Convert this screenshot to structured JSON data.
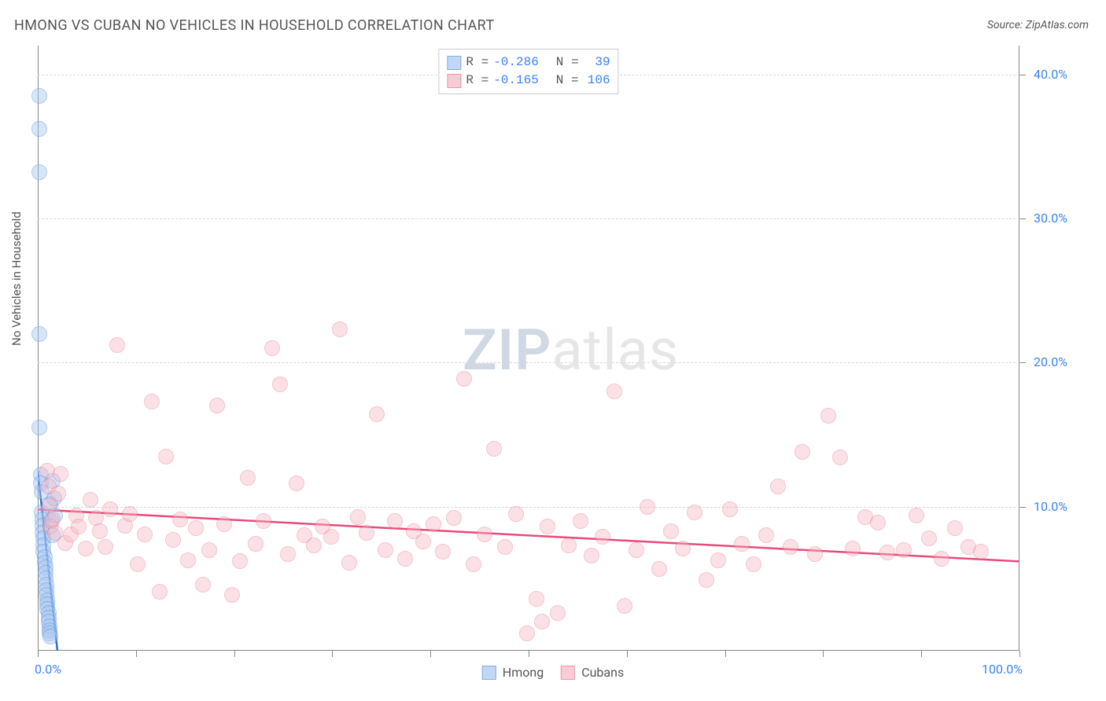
{
  "title": "HMONG VS CUBAN NO VEHICLES IN HOUSEHOLD CORRELATION CHART",
  "source": "Source: ZipAtlas.com",
  "y_axis_label": "No Vehicles in Household",
  "watermark": {
    "zip": "ZIP",
    "atlas": "atlas"
  },
  "chart": {
    "type": "scatter",
    "background_color": "#ffffff",
    "grid_color": "#d8d8d8",
    "axis_color": "#888888",
    "label_color": "#555555",
    "tick_label_color": "#3b82f6",
    "tick_fontsize": 16,
    "title_fontsize": 18,
    "xlim": [
      0,
      100
    ],
    "ylim": [
      0,
      42
    ],
    "x_ticks": [
      0,
      10,
      20,
      30,
      40,
      50,
      60,
      70,
      80,
      90,
      100
    ],
    "x_tick_labels_shown": {
      "0": "0.0%",
      "100": "100.0%"
    },
    "y_ticks": [
      10,
      20,
      30,
      40
    ],
    "y_tick_labels": {
      "10": "10.0%",
      "20": "20.0%",
      "30": "30.0%",
      "40": "40.0%"
    },
    "marker_radius": 10,
    "marker_border_width": 1.5,
    "trend_line_width": 2.5,
    "series": [
      {
        "name": "Hmong",
        "fill_color": "#a8c7f0",
        "fill_opacity": 0.45,
        "border_color": "#4f8ddb",
        "trend_color": "#2d6cdf",
        "R": "-0.286",
        "N": "39",
        "trend": {
          "x1": 0,
          "y1": 12.5,
          "x2": 2.0,
          "y2": 0
        },
        "points": [
          [
            0.2,
            38.5
          ],
          [
            0.2,
            36.2
          ],
          [
            0.2,
            33.2
          ],
          [
            0.2,
            22.0
          ],
          [
            0.2,
            15.5
          ],
          [
            0.3,
            12.2
          ],
          [
            0.3,
            11.6
          ],
          [
            0.4,
            11.0
          ],
          [
            0.4,
            9.6
          ],
          [
            0.5,
            9.1
          ],
          [
            0.5,
            8.7
          ],
          [
            0.5,
            8.2
          ],
          [
            0.6,
            7.8
          ],
          [
            0.6,
            7.3
          ],
          [
            0.6,
            6.9
          ],
          [
            0.7,
            6.5
          ],
          [
            0.7,
            6.1
          ],
          [
            0.8,
            5.8
          ],
          [
            0.8,
            5.4
          ],
          [
            0.8,
            5.0
          ],
          [
            0.9,
            4.6
          ],
          [
            0.9,
            4.2
          ],
          [
            0.9,
            3.9
          ],
          [
            1.0,
            3.5
          ],
          [
            1.0,
            3.2
          ],
          [
            1.0,
            2.9
          ],
          [
            1.1,
            2.6
          ],
          [
            1.1,
            2.3
          ],
          [
            1.1,
            2.0
          ],
          [
            1.2,
            1.7
          ],
          [
            1.2,
            1.4
          ],
          [
            1.2,
            1.2
          ],
          [
            1.3,
            1.0
          ],
          [
            1.3,
            10.2
          ],
          [
            1.4,
            9.0
          ],
          [
            1.5,
            8.0
          ],
          [
            1.5,
            11.8
          ],
          [
            1.7,
            10.6
          ],
          [
            1.8,
            9.4
          ]
        ]
      },
      {
        "name": "Cubans",
        "fill_color": "#f7b6c2",
        "fill_opacity": 0.4,
        "border_color": "#e76b8a",
        "trend_color": "#e84a7a",
        "R": "-0.165",
        "N": "106",
        "trend": {
          "x1": 0,
          "y1": 9.8,
          "x2": 100,
          "y2": 6.2
        },
        "points": [
          [
            1.0,
            12.5
          ],
          [
            1.1,
            11.4
          ],
          [
            1.2,
            10.1
          ],
          [
            1.3,
            8.6
          ],
          [
            1.5,
            9.1
          ],
          [
            1.8,
            8.2
          ],
          [
            2.1,
            10.9
          ],
          [
            2.3,
            12.3
          ],
          [
            2.8,
            7.5
          ],
          [
            3.4,
            8.1
          ],
          [
            3.9,
            9.4
          ],
          [
            4.2,
            8.6
          ],
          [
            4.9,
            7.1
          ],
          [
            5.4,
            10.5
          ],
          [
            5.9,
            9.2
          ],
          [
            6.3,
            8.3
          ],
          [
            6.9,
            7.2
          ],
          [
            7.4,
            9.8
          ],
          [
            8.1,
            21.2
          ],
          [
            8.9,
            8.7
          ],
          [
            9.4,
            9.5
          ],
          [
            10.2,
            6.0
          ],
          [
            10.9,
            8.1
          ],
          [
            11.6,
            17.3
          ],
          [
            12.4,
            4.1
          ],
          [
            13.1,
            13.5
          ],
          [
            13.8,
            7.7
          ],
          [
            14.5,
            9.1
          ],
          [
            15.3,
            6.3
          ],
          [
            16.1,
            8.5
          ],
          [
            16.8,
            4.6
          ],
          [
            17.5,
            7.0
          ],
          [
            18.3,
            17.0
          ],
          [
            19.0,
            8.8
          ],
          [
            19.8,
            3.9
          ],
          [
            20.6,
            6.2
          ],
          [
            21.4,
            12.0
          ],
          [
            22.2,
            7.4
          ],
          [
            23.0,
            9.0
          ],
          [
            23.9,
            21.0
          ],
          [
            24.7,
            18.5
          ],
          [
            25.5,
            6.7
          ],
          [
            26.4,
            11.6
          ],
          [
            27.2,
            8.0
          ],
          [
            28.1,
            7.3
          ],
          [
            29.0,
            8.6
          ],
          [
            29.9,
            7.9
          ],
          [
            30.8,
            22.3
          ],
          [
            31.7,
            6.1
          ],
          [
            32.6,
            9.3
          ],
          [
            33.5,
            8.2
          ],
          [
            34.5,
            16.4
          ],
          [
            35.4,
            7.0
          ],
          [
            36.4,
            9.0
          ],
          [
            37.4,
            6.4
          ],
          [
            38.3,
            8.3
          ],
          [
            39.3,
            7.6
          ],
          [
            40.3,
            8.8
          ],
          [
            41.3,
            6.9
          ],
          [
            42.4,
            9.2
          ],
          [
            43.4,
            18.9
          ],
          [
            44.4,
            6.0
          ],
          [
            45.5,
            8.1
          ],
          [
            46.5,
            14.0
          ],
          [
            47.6,
            7.2
          ],
          [
            48.7,
            9.5
          ],
          [
            49.8,
            1.2
          ],
          [
            50.8,
            3.6
          ],
          [
            51.4,
            2.0
          ],
          [
            51.9,
            8.6
          ],
          [
            53.0,
            2.6
          ],
          [
            54.1,
            7.3
          ],
          [
            55.3,
            9.0
          ],
          [
            56.4,
            6.6
          ],
          [
            57.5,
            7.9
          ],
          [
            58.7,
            18.0
          ],
          [
            59.8,
            3.1
          ],
          [
            61.0,
            7.0
          ],
          [
            62.1,
            10.0
          ],
          [
            63.3,
            5.7
          ],
          [
            64.5,
            8.3
          ],
          [
            65.7,
            7.1
          ],
          [
            66.9,
            9.6
          ],
          [
            68.1,
            4.9
          ],
          [
            69.3,
            6.3
          ],
          [
            70.5,
            9.8
          ],
          [
            71.7,
            7.4
          ],
          [
            72.9,
            6.0
          ],
          [
            74.2,
            8.0
          ],
          [
            75.4,
            11.4
          ],
          [
            76.7,
            7.2
          ],
          [
            77.9,
            13.8
          ],
          [
            79.2,
            6.7
          ],
          [
            80.5,
            16.3
          ],
          [
            81.7,
            13.4
          ],
          [
            83.0,
            7.1
          ],
          [
            84.3,
            9.3
          ],
          [
            85.6,
            8.9
          ],
          [
            86.5,
            6.8
          ],
          [
            88.2,
            7.0
          ],
          [
            89.5,
            9.4
          ],
          [
            90.8,
            7.8
          ],
          [
            92.1,
            6.4
          ],
          [
            93.4,
            8.5
          ],
          [
            94.8,
            7.2
          ],
          [
            96.1,
            6.9
          ]
        ]
      }
    ]
  },
  "legend_top": {
    "r_label": "R =",
    "n_label": "N ="
  },
  "legend_bottom": {
    "items": [
      "Hmong",
      "Cubans"
    ]
  }
}
